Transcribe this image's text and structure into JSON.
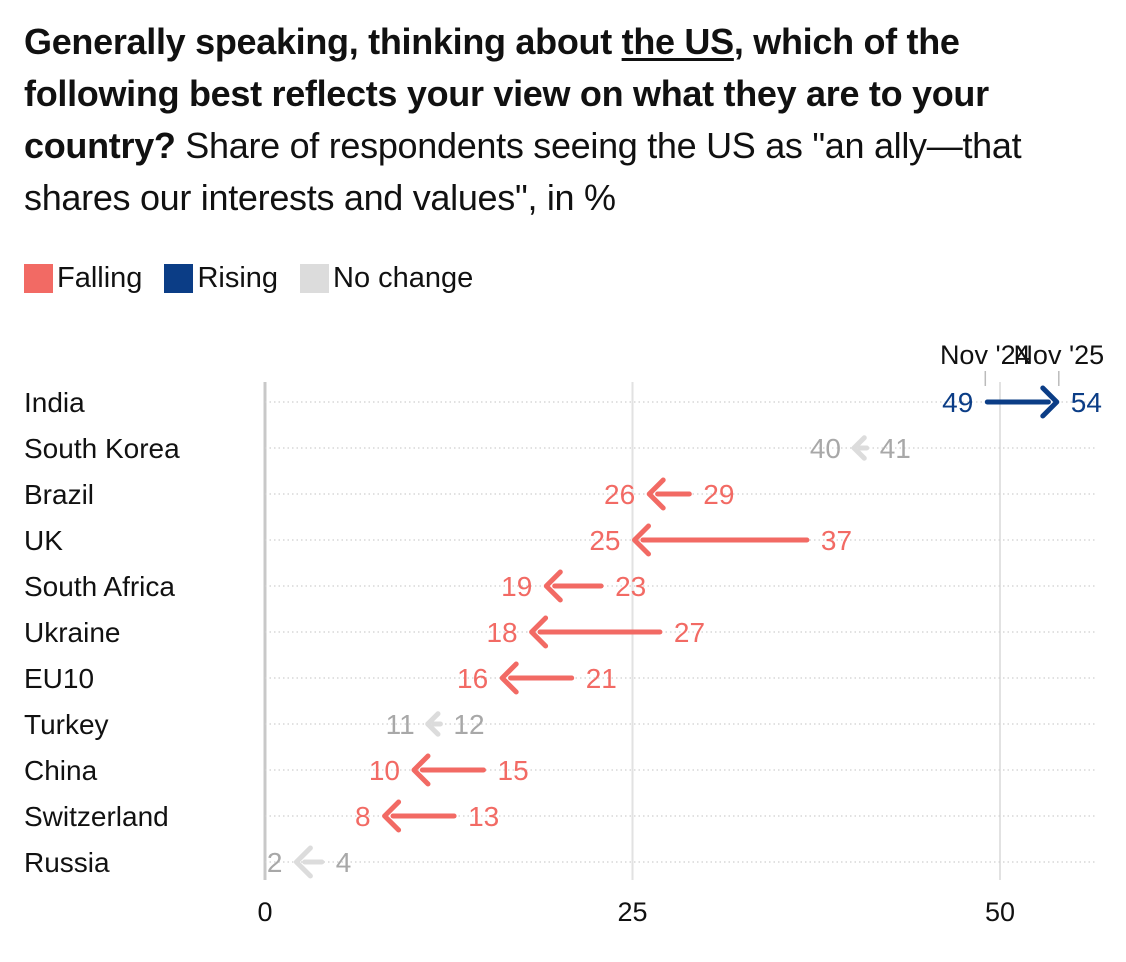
{
  "title": {
    "bold_pre": "Generally speaking, thinking about ",
    "bold_underlined": "the US",
    "bold_post": ", which of the following best reflects your view on what they are to your country?",
    "normal": " Share of respondents seeing the US as \"an ally—that shares our interests and values\", in %"
  },
  "legend": [
    {
      "label": "Falling",
      "color": "#F26A64"
    },
    {
      "label": "Rising",
      "color": "#0B3D86"
    },
    {
      "label": "No change",
      "color": "#DCDCDC"
    }
  ],
  "colors": {
    "falling": "#F26A64",
    "rising": "#0B3D86",
    "nochange_arrow": "#DCDCDC",
    "nochange_text": "#A8A8A8"
  },
  "chart_data": {
    "type": "arrow-dumbbell",
    "title": "Share of respondents seeing the US as \"an ally—that shares our interests and values\", in %",
    "series_labels": {
      "from": "Nov '24",
      "to": "Nov '25"
    },
    "x_ticks": [
      0,
      25,
      50
    ],
    "xlim": [
      0,
      56
    ],
    "rows": [
      {
        "country": "India",
        "nov24": 49,
        "nov25": 54,
        "trend": "rising"
      },
      {
        "country": "South Korea",
        "nov24": 41,
        "nov25": 40,
        "trend": "nochange"
      },
      {
        "country": "Brazil",
        "nov24": 29,
        "nov25": 26,
        "trend": "falling"
      },
      {
        "country": "UK",
        "nov24": 37,
        "nov25": 25,
        "trend": "falling"
      },
      {
        "country": "South Africa",
        "nov24": 23,
        "nov25": 19,
        "trend": "falling"
      },
      {
        "country": "Ukraine",
        "nov24": 27,
        "nov25": 18,
        "trend": "falling"
      },
      {
        "country": "EU10",
        "nov24": 21,
        "nov25": 16,
        "trend": "falling"
      },
      {
        "country": "Turkey",
        "nov24": 12,
        "nov25": 11,
        "trend": "nochange"
      },
      {
        "country": "China",
        "nov24": 15,
        "nov25": 10,
        "trend": "falling"
      },
      {
        "country": "Switzerland",
        "nov24": 13,
        "nov25": 8,
        "trend": "falling"
      },
      {
        "country": "Russia",
        "nov24": 4,
        "nov25": 2,
        "trend": "nochange"
      }
    ]
  }
}
